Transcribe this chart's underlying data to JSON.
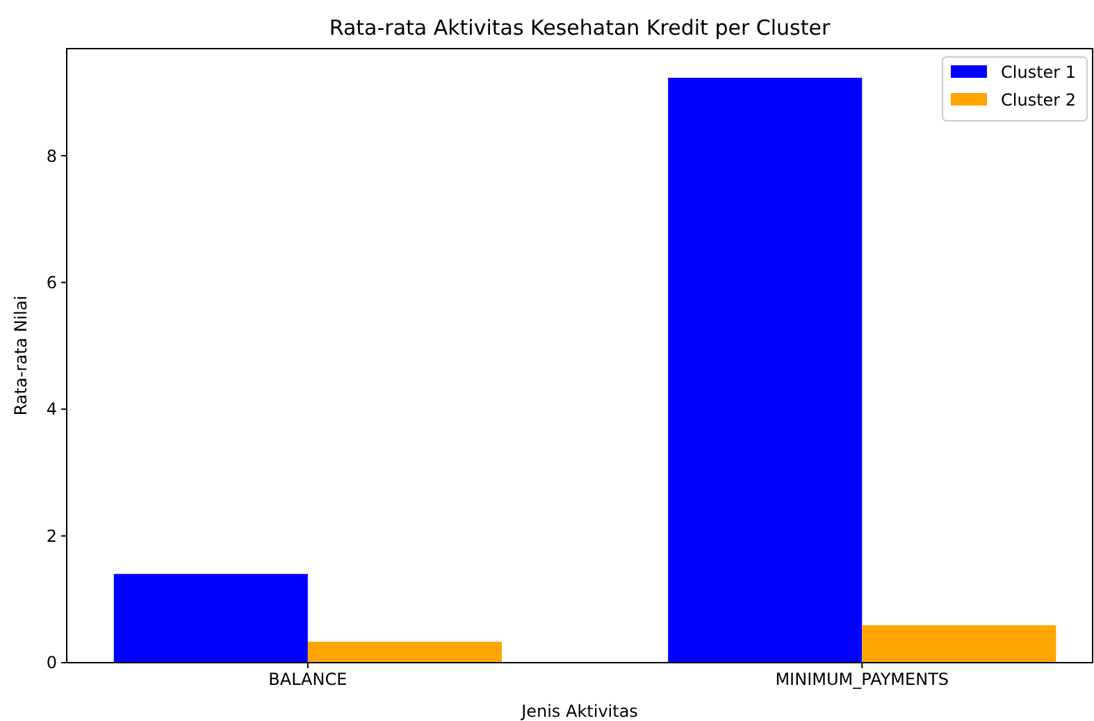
{
  "chart_data": {
    "type": "bar",
    "title": "Rata-rata Aktivitas Kesehatan Kredit per Cluster",
    "xlabel": "Jenis Aktivitas",
    "ylabel": "Rata-rata Nilai",
    "categories": [
      "BALANCE",
      "MINIMUM_PAYMENTS"
    ],
    "series": [
      {
        "name": "Cluster 1",
        "color": "#0000ff",
        "values": [
          1.4,
          9.23
        ]
      },
      {
        "name": "Cluster 2",
        "color": "#ffa500",
        "values": [
          0.33,
          0.59
        ]
      }
    ],
    "ylim": [
      0,
      9.69
    ],
    "yticks": [
      0,
      2,
      4,
      6,
      8
    ],
    "grid": false,
    "legend": "top right"
  }
}
